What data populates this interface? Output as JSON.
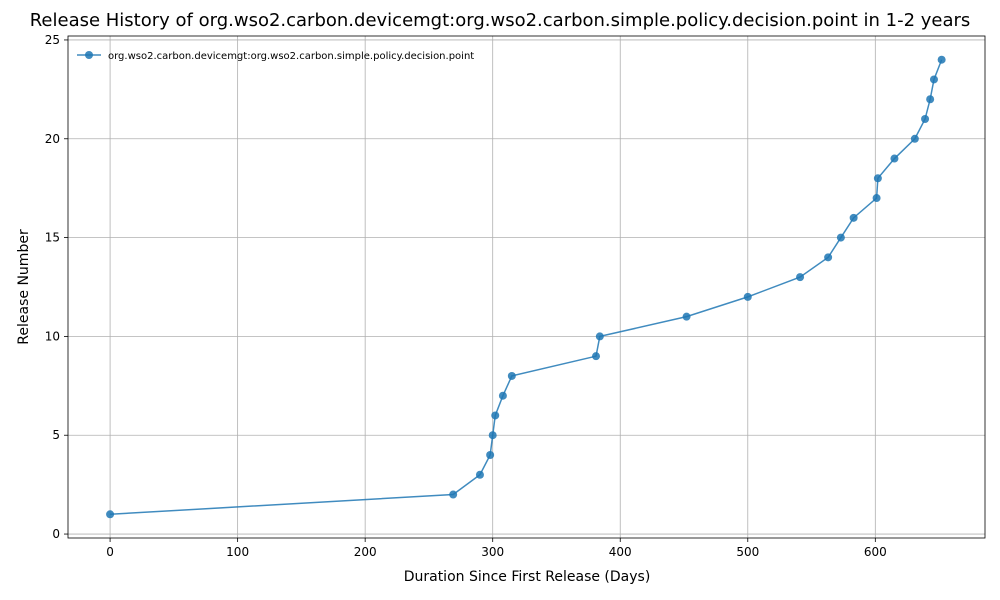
{
  "chart_data": {
    "type": "line",
    "title": "Release History of org.wso2.carbon.devicemgt:org.wso2.carbon.simple.policy.decision.point in 1-2 years",
    "xlabel": "Duration Since First Release (Days)",
    "ylabel": "Release Number",
    "xlim": [
      -33,
      686
    ],
    "ylim": [
      -0.2,
      25.2
    ],
    "xticks": [
      0,
      100,
      200,
      300,
      400,
      500,
      600
    ],
    "yticks": [
      0,
      5,
      10,
      15,
      20,
      25
    ],
    "grid": true,
    "legend_position": "top-left",
    "series": [
      {
        "name": "org.wso2.carbon.devicemgt:org.wso2.carbon.simple.policy.decision.point",
        "color": "#1f77b4",
        "marker": "circle",
        "x": [
          0,
          269,
          290,
          298,
          300,
          302,
          308,
          315,
          381,
          384,
          452,
          500,
          541,
          563,
          573,
          583,
          601,
          602,
          615,
          631,
          639,
          643,
          646,
          652
        ],
        "y": [
          1,
          2,
          3,
          4,
          5,
          6,
          7,
          8,
          9,
          10,
          11,
          12,
          13,
          14,
          15,
          16,
          17,
          18,
          19,
          20,
          21,
          22,
          23,
          24
        ]
      }
    ]
  }
}
